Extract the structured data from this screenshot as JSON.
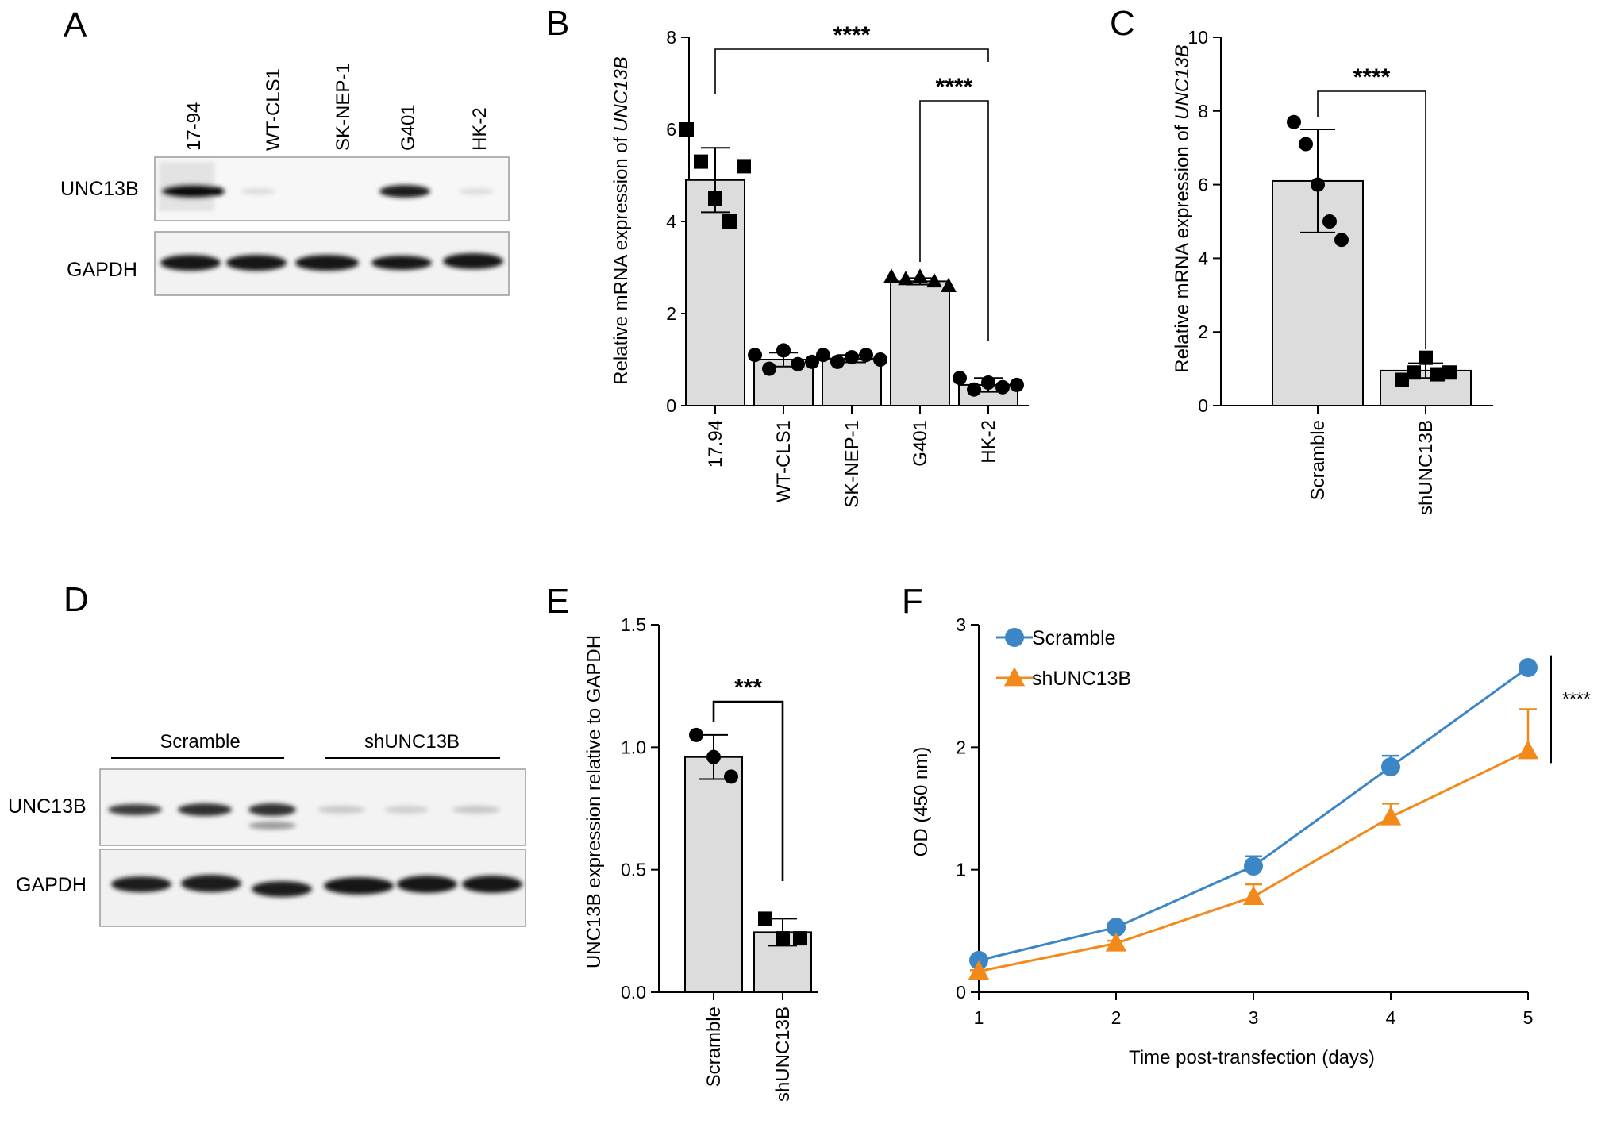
{
  "panels": {
    "A": {
      "letter": "A",
      "lanes": [
        "17-94",
        "WT-CLS1",
        "SK-NEP-1",
        "G401",
        "HK-2"
      ],
      "row1": "UNC13B",
      "row2": "GAPDH"
    },
    "D": {
      "letter": "D",
      "group1": "Scramble",
      "group2": "shUNC13B",
      "row1": "UNC13B",
      "row2": "GAPDH"
    }
  },
  "chart_data": [
    {
      "id": "B",
      "letter": "B",
      "type": "bar",
      "categories": [
        "17.94",
        "WT-CLS1",
        "SK-NEP-1",
        "G401",
        "HK-2"
      ],
      "values": [
        4.9,
        1.0,
        1.02,
        2.7,
        0.45
      ],
      "errors": [
        0.7,
        0.15,
        0.08,
        0.07,
        0.15
      ],
      "markers": [
        "square",
        "circle",
        "circle",
        "triangle",
        "circle"
      ],
      "points": [
        [
          6.0,
          5.3,
          4.5,
          4.0,
          5.2
        ],
        [
          1.1,
          0.8,
          1.2,
          0.9,
          0.95
        ],
        [
          1.1,
          0.95,
          1.05,
          1.1,
          1.0
        ],
        [
          2.8,
          2.75,
          2.8,
          2.7,
          2.6
        ],
        [
          0.6,
          0.35,
          0.5,
          0.4,
          0.45
        ]
      ],
      "ylabel_prefix": "Relative mRNA expression of ",
      "ylabel_italic": "UNC13B",
      "ylim": [
        0,
        8
      ],
      "yticks": [
        "0",
        "2",
        "4",
        "6",
        "8"
      ],
      "significance": [
        {
          "from": 0,
          "to": 4,
          "label": "****"
        },
        {
          "from": 3,
          "to": 4,
          "label": "****"
        }
      ]
    },
    {
      "id": "C",
      "letter": "C",
      "type": "bar",
      "categories": [
        "Scramble",
        "shUNC13B"
      ],
      "values": [
        6.1,
        0.95
      ],
      "errors": [
        1.4,
        0.2
      ],
      "markers": [
        "circle",
        "square"
      ],
      "points": [
        [
          7.7,
          7.1,
          6.0,
          5.0,
          4.5
        ],
        [
          0.7,
          0.9,
          1.3,
          0.85,
          0.9
        ]
      ],
      "ylabel_prefix": "Relative mRNA expression of ",
      "ylabel_italic": "UNC13B",
      "ylim": [
        0,
        10
      ],
      "yticks": [
        "0",
        "2",
        "4",
        "6",
        "8",
        "10"
      ],
      "significance": [
        {
          "from": 0,
          "to": 1,
          "label": "****"
        }
      ]
    },
    {
      "id": "E",
      "letter": "E",
      "type": "bar",
      "categories": [
        "Scramble",
        "shUNC13B"
      ],
      "values": [
        0.96,
        0.245
      ],
      "errors": [
        0.09,
        0.055
      ],
      "markers": [
        "circle",
        "square"
      ],
      "points": [
        [
          1.05,
          0.96,
          0.88
        ],
        [
          0.3,
          0.22,
          0.22
        ]
      ],
      "ylabel": "UNC13B expression relative to GAPDH",
      "ylim": [
        0,
        1.5
      ],
      "yticks": [
        "0.0",
        "0.5",
        "1.0",
        "1.5"
      ],
      "significance": [
        {
          "from": 0,
          "to": 1,
          "label": "***"
        }
      ]
    },
    {
      "id": "F",
      "letter": "F",
      "type": "line",
      "x": [
        1,
        2,
        3,
        4,
        5
      ],
      "xticks": [
        "1",
        "2",
        "3",
        "4",
        "5"
      ],
      "xlim": [
        1,
        5
      ],
      "ylim": [
        0,
        3
      ],
      "yticks": [
        "0",
        "1",
        "2",
        "3"
      ],
      "xlabel": "Time post-transfection (days)",
      "ylabel": "OD (450 nm)",
      "series": [
        {
          "name": "Scramble",
          "values": [
            0.26,
            0.53,
            1.03,
            1.84,
            2.65
          ],
          "errors": [
            0.01,
            0.02,
            0.08,
            0.09,
            0.02
          ],
          "color": "#3d86c6",
          "marker": "circle"
        },
        {
          "name": "shUNC13B",
          "values": [
            0.17,
            0.4,
            0.78,
            1.43,
            1.97
          ],
          "errors": [
            0.01,
            0.02,
            0.1,
            0.11,
            0.34
          ],
          "color": "#f28a1b",
          "marker": "triangle"
        }
      ],
      "legend_position": "top-left",
      "significance_label": "****"
    }
  ]
}
